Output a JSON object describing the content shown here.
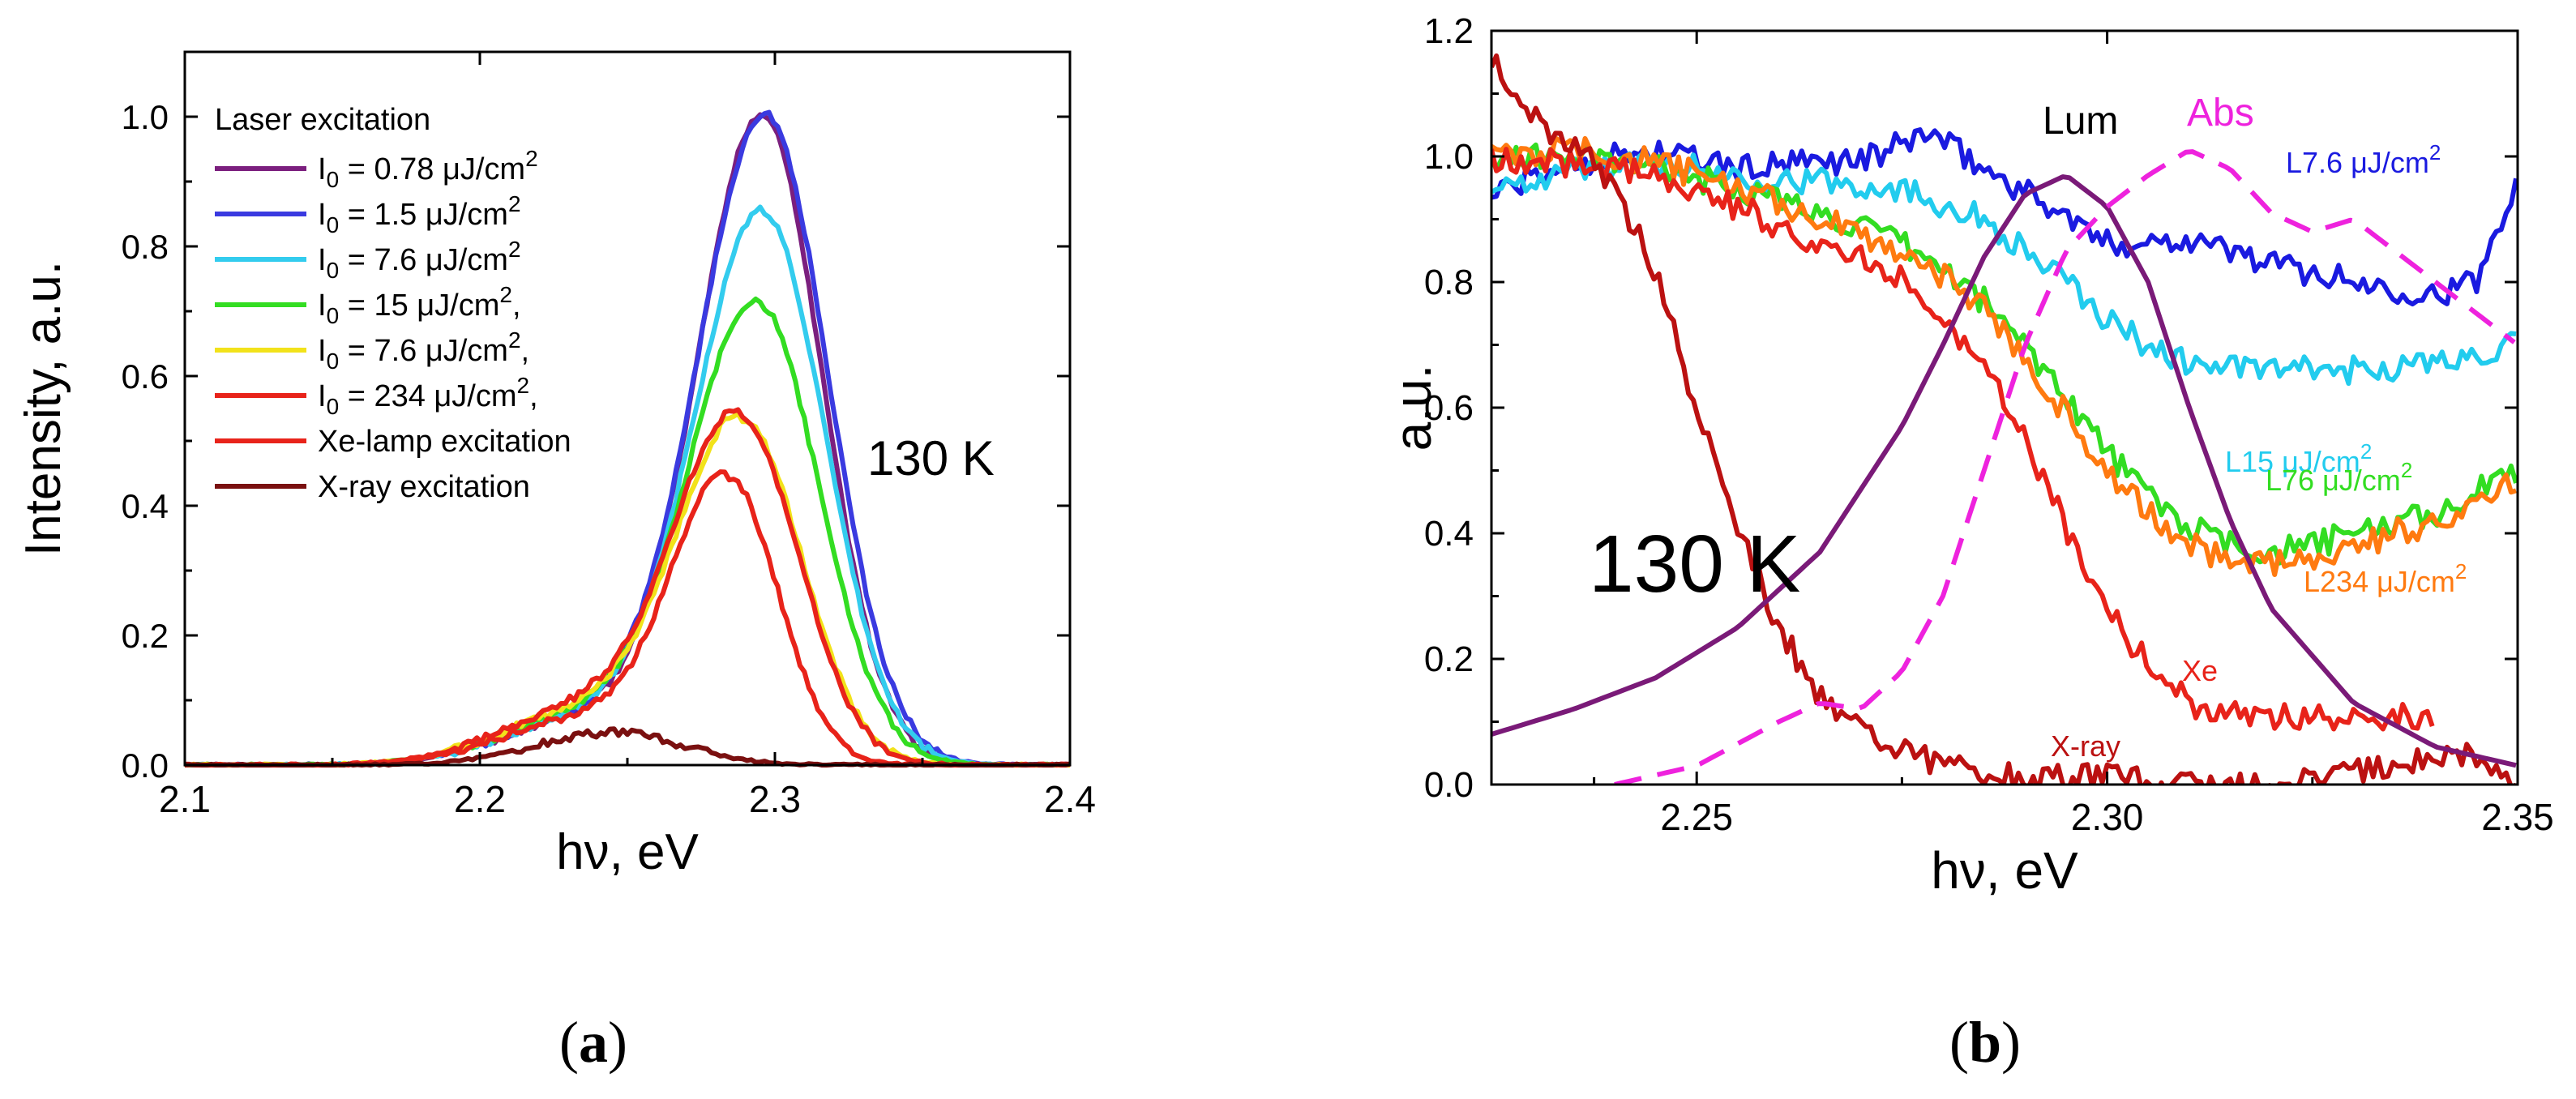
{
  "panels": [
    {
      "label_open": "(",
      "label_letter": "a",
      "label_close": ")"
    },
    {
      "label_open": "(",
      "label_letter": "b",
      "label_close": ")"
    }
  ],
  "chart_data": [
    {
      "type": "line",
      "id": "a",
      "xlabel": "hν, eV",
      "ylabel": "Intensity, a.u.",
      "xlim": [
        2.1,
        2.4
      ],
      "ylim": [
        0.0,
        1.1
      ],
      "xticks": [
        "2.1",
        "2.2",
        "2.3",
        "2.4"
      ],
      "yticks": [
        "0.0",
        "0.2",
        "0.4",
        "0.6",
        "0.8",
        "1.0"
      ],
      "annotation": "130 K",
      "legend_title": "Laser excitation",
      "series": [
        {
          "name": "I0 = 0.78 μJ/cm2",
          "legend_main": "I",
          "legend_sub": "0",
          "legend_rest": " = 0.78 μJ/cm",
          "legend_sup": "2",
          "legend_tail": "",
          "color": "#7b1f7e",
          "peak": 1.0,
          "center": 2.296,
          "width": 0.021,
          "shoulder": 0.07
        },
        {
          "name": "I0 = 1.5 μJ/cm2",
          "legend_main": "I",
          "legend_sub": "0",
          "legend_rest": " = 1.5 μJ/cm",
          "legend_sup": "2",
          "legend_tail": "",
          "color": "#3a3ae0",
          "peak": 1.0,
          "center": 2.297,
          "width": 0.022,
          "shoulder": 0.07
        },
        {
          "name": "I0 = 7.6 μJ/cm2",
          "legend_main": "I",
          "legend_sub": "0",
          "legend_rest": " = 7.6 μJ/cm",
          "legend_sup": "2",
          "legend_tail": "",
          "color": "#33ccee",
          "peak": 0.85,
          "center": 2.296,
          "width": 0.022,
          "shoulder": 0.07
        },
        {
          "name": "I0 = 15 μJ/cm2,",
          "legend_main": "I",
          "legend_sub": "0",
          "legend_rest": " = 15 μJ/cm",
          "legend_sup": "2",
          "legend_tail": ",",
          "color": "#33dd22",
          "peak": 0.71,
          "center": 2.294,
          "width": 0.022,
          "shoulder": 0.075
        },
        {
          "name": "I0 = 7.6 μJ/cm2,",
          "legend_main": "I",
          "legend_sub": "0",
          "legend_rest": " = 7.6 μJ/cm",
          "legend_sup": "2",
          "legend_tail": ",",
          "color": "#f2e21a",
          "peak": 0.53,
          "center": 2.289,
          "width": 0.021,
          "shoulder": 0.08
        },
        {
          "name": "I0 = 234 μJ/cm2,",
          "legend_main": "I",
          "legend_sub": "0",
          "legend_rest": " = 234 μJ/cm",
          "legend_sup": "2",
          "legend_tail": ",",
          "color": "#e8231a",
          "peak": 0.535,
          "center": 2.288,
          "width": 0.021,
          "shoulder": 0.085
        },
        {
          "name": "Xe-lamp excitation",
          "legend_main": "Xe-lamp excitation",
          "legend_sub": "",
          "legend_rest": "",
          "legend_sup": "",
          "legend_tail": "",
          "color": "#e8231a",
          "peak": 0.44,
          "center": 2.284,
          "width": 0.018,
          "shoulder": 0.07
        },
        {
          "name": "X-ray excitation",
          "legend_main": "X-ray excitation",
          "legend_sub": "",
          "legend_rest": "",
          "legend_sup": "",
          "legend_tail": "",
          "color": "#7a1010",
          "peak": 0.05,
          "center": 2.245,
          "width": 0.025,
          "shoulder": 0.0
        }
      ]
    },
    {
      "type": "line",
      "id": "b",
      "xlabel": "hν, eV",
      "ylabel": "a.u.",
      "xlim": [
        2.225,
        2.35
      ],
      "ylim": [
        0.0,
        1.2
      ],
      "xticks": [
        "2.25",
        "2.30",
        "2.35"
      ],
      "yticks": [
        "0.0",
        "0.2",
        "0.4",
        "0.6",
        "0.8",
        "1.0",
        "1.2"
      ],
      "annotation": "130 K",
      "series": [
        {
          "name": "L7.6 μJ/cm2",
          "label_main": "L7.6 μJ/cm",
          "label_sup": "2",
          "color": "#1a1ae0",
          "x": [
            2.225,
            2.235,
            2.245,
            2.255,
            2.265,
            2.272,
            2.278,
            2.285,
            2.292,
            2.3,
            2.31,
            2.32,
            2.33,
            2.34,
            2.345,
            2.35
          ],
          "y": [
            0.94,
            0.99,
            1.01,
            0.98,
            0.99,
            1.0,
            1.04,
            0.98,
            0.93,
            0.86,
            0.87,
            0.83,
            0.8,
            0.78,
            0.8,
            0.97
          ]
        },
        {
          "name": "L15 μJ/cm2",
          "label_main": "L15 μJ/cm",
          "label_sup": "2",
          "color": "#22ccee",
          "x": [
            2.225,
            2.235,
            2.245,
            2.255,
            2.265,
            2.275,
            2.285,
            2.29,
            2.295,
            2.3,
            2.305,
            2.31,
            2.32,
            2.33,
            2.34,
            2.35
          ],
          "y": [
            0.95,
            0.98,
            0.99,
            0.97,
            0.96,
            0.95,
            0.9,
            0.85,
            0.8,
            0.74,
            0.7,
            0.67,
            0.66,
            0.66,
            0.67,
            0.7
          ]
        },
        {
          "name": "L76 μJ/cm2",
          "label_main": "L76 μJ/cm",
          "label_sup": "2",
          "color": "#33dd22",
          "x": [
            2.225,
            2.235,
            2.245,
            2.255,
            2.265,
            2.275,
            2.28,
            2.285,
            2.29,
            2.295,
            2.3,
            2.305,
            2.31,
            2.315,
            2.32,
            2.325,
            2.33,
            2.34,
            2.35
          ],
          "y": [
            1.0,
            1.0,
            0.98,
            0.95,
            0.91,
            0.86,
            0.82,
            0.77,
            0.7,
            0.62,
            0.53,
            0.46,
            0.41,
            0.38,
            0.37,
            0.38,
            0.4,
            0.43,
            0.5
          ]
        },
        {
          "name": "L234 μJ/cm2",
          "label_main": "L234 μJ/cm",
          "label_sup": "2",
          "color": "#ff7a10",
          "x": [
            2.225,
            2.235,
            2.245,
            2.255,
            2.265,
            2.275,
            2.28,
            2.285,
            2.29,
            2.295,
            2.3,
            2.305,
            2.31,
            2.315,
            2.32,
            2.325,
            2.33,
            2.34,
            2.35
          ],
          "y": [
            1.0,
            1.01,
            0.99,
            0.95,
            0.9,
            0.85,
            0.81,
            0.76,
            0.68,
            0.59,
            0.5,
            0.43,
            0.38,
            0.36,
            0.35,
            0.36,
            0.38,
            0.42,
            0.48
          ]
        },
        {
          "name": "Xe",
          "label_main": "Xe",
          "label_sup": "",
          "color": "#e8231a",
          "x": [
            2.225,
            2.235,
            2.245,
            2.255,
            2.265,
            2.275,
            2.28,
            2.285,
            2.29,
            2.295,
            2.3,
            2.305,
            2.31,
            2.315,
            2.32,
            2.33,
            2.34
          ],
          "y": [
            0.99,
            0.99,
            0.97,
            0.92,
            0.86,
            0.81,
            0.75,
            0.66,
            0.55,
            0.41,
            0.28,
            0.19,
            0.13,
            0.11,
            0.11,
            0.11,
            0.11
          ]
        },
        {
          "name": "X-ray",
          "label_main": "X-ray",
          "label_sup": "",
          "color": "#bb1111",
          "x": [
            2.225,
            2.23,
            2.235,
            2.24,
            2.245,
            2.25,
            2.255,
            2.26,
            2.265,
            2.27,
            2.28,
            2.29,
            2.3,
            2.31,
            2.32,
            2.33,
            2.34,
            2.345,
            2.35
          ],
          "y": [
            1.15,
            1.06,
            1.02,
            0.95,
            0.82,
            0.6,
            0.42,
            0.25,
            0.14,
            0.09,
            0.03,
            0.01,
            0.01,
            0.0,
            0.0,
            0.02,
            0.04,
            0.05,
            0.0
          ]
        },
        {
          "name": "Lum",
          "label_main": "Lum",
          "label_sup": "",
          "color": "#7a1a78",
          "dashed": false,
          "x": [
            2.225,
            2.235,
            2.245,
            2.255,
            2.265,
            2.275,
            2.28,
            2.285,
            2.29,
            2.295,
            2.3,
            2.305,
            2.31,
            2.315,
            2.32,
            2.33,
            2.34,
            2.35
          ],
          "y": [
            0.08,
            0.12,
            0.17,
            0.25,
            0.37,
            0.57,
            0.7,
            0.84,
            0.94,
            0.97,
            0.92,
            0.8,
            0.6,
            0.42,
            0.28,
            0.13,
            0.06,
            0.03
          ]
        },
        {
          "name": "Abs",
          "label_main": "Abs",
          "label_sup": "",
          "color": "#ee22dd",
          "dashed": true,
          "x": [
            2.24,
            2.25,
            2.26,
            2.265,
            2.27,
            2.275,
            2.28,
            2.285,
            2.29,
            2.295,
            2.3,
            2.305,
            2.31,
            2.315,
            2.32,
            2.325,
            2.33,
            2.34,
            2.35
          ],
          "y": [
            0.0,
            0.03,
            0.1,
            0.13,
            0.12,
            0.18,
            0.3,
            0.5,
            0.7,
            0.85,
            0.92,
            0.97,
            1.01,
            0.98,
            0.91,
            0.88,
            0.9,
            0.8,
            0.7
          ]
        }
      ]
    }
  ]
}
